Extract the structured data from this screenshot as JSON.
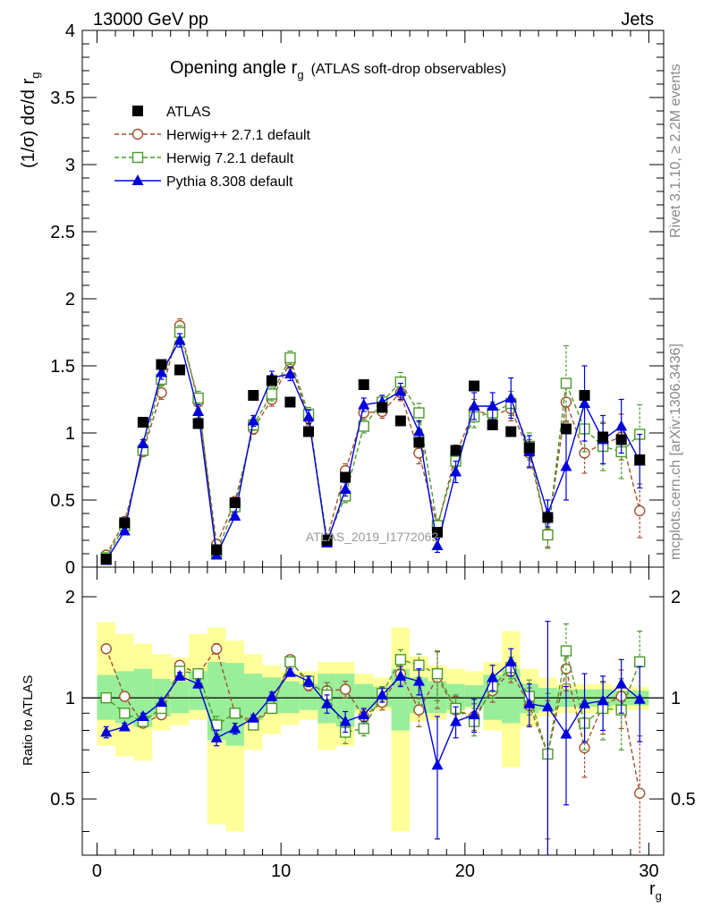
{
  "header": {
    "left": "13000 GeV pp",
    "right": "Jets"
  },
  "title": {
    "main": "Opening angle r",
    "sub": "g",
    "extra": "(ATLAS soft-drop observables)"
  },
  "side_labels": {
    "rivet": "Rivet 3.1.10, ≥ 2.2M events",
    "mcplots": "mcplots.cern.ch [arXiv:1306.3436]"
  },
  "watermark": "ATLAS_2019_I1772062",
  "axes": {
    "xlabel_main": "r",
    "xlabel_sub": "g",
    "ylabel_top": "(1/σ) dσ/d r",
    "ylabel_top_sub": "g",
    "ylabel_bottom": "Ratio to ATLAS",
    "top_yticks": [
      "0",
      "0.5",
      "1",
      "1.5",
      "2",
      "2.5",
      "3",
      "3.5",
      "4"
    ],
    "bottom_yticks": [
      "0.5",
      "1",
      "2"
    ],
    "xticks": [
      "0",
      "10",
      "20",
      "30"
    ]
  },
  "colors": {
    "atlas": "#000000",
    "herwig27": "#a0522d",
    "herwig72": "#4a9a2a",
    "pythia": "#0000dd",
    "band_yellow": "#ffff99",
    "band_green": "#99ee99"
  },
  "chart_data": [
    {
      "type": "scatter",
      "panel": "main",
      "title": "Opening angle r_g (ATLAS soft-drop observables)",
      "xlabel": "r_g",
      "ylabel": "(1/σ) dσ/d r_g",
      "xlim": [
        -0.8,
        30.8
      ],
      "ylim": [
        0,
        4
      ],
      "legend_position": "top-left",
      "x": [
        0.5,
        1.5,
        2.5,
        3.5,
        4.5,
        5.5,
        6.5,
        7.5,
        8.5,
        9.5,
        10.5,
        11.5,
        12.5,
        13.5,
        14.5,
        15.5,
        16.5,
        17.5,
        18.5,
        19.5,
        20.5,
        21.5,
        22.5,
        23.5,
        24.5,
        25.5,
        26.5,
        27.5,
        28.5,
        29.5
      ],
      "series": [
        {
          "name": "ATLAS",
          "marker": "square",
          "values": [
            0.06,
            0.33,
            1.08,
            1.51,
            1.47,
            1.07,
            0.13,
            0.48,
            1.28,
            1.39,
            1.23,
            1.01,
            0.2,
            0.67,
            1.36,
            1.19,
            1.09,
            0.93,
            0.26,
            0.87,
            1.35,
            1.06,
            1.01,
            0.89,
            0.37,
            1.03,
            1.28,
            0.97,
            0.95,
            0.8
          ]
        },
        {
          "name": "Herwig++ 2.7.1 default",
          "marker": "open-circle",
          "values": [
            0.09,
            0.34,
            0.86,
            1.3,
            1.8,
            1.23,
            0.17,
            0.49,
            1.03,
            1.25,
            1.53,
            1.11,
            0.21,
            0.72,
            1.15,
            1.16,
            1.3,
            0.85,
            0.3,
            0.84,
            1.17,
            1.13,
            1.18,
            0.85,
            0.25,
            1.23,
            0.85,
            0.92,
            0.97,
            0.42
          ],
          "errors": [
            0.02,
            0.03,
            0.03,
            0.05,
            0.05,
            0.05,
            0.03,
            0.03,
            0.04,
            0.05,
            0.05,
            0.05,
            0.03,
            0.05,
            0.05,
            0.05,
            0.06,
            0.08,
            0.05,
            0.07,
            0.08,
            0.08,
            0.09,
            0.1,
            0.1,
            0.15,
            0.15,
            0.15,
            0.17,
            0.2
          ]
        },
        {
          "name": "Herwig 7.2.1 default",
          "marker": "open-square",
          "values": [
            0.07,
            0.31,
            0.87,
            1.4,
            1.75,
            1.26,
            0.11,
            0.45,
            1.06,
            1.29,
            1.56,
            1.14,
            0.2,
            0.53,
            1.05,
            1.23,
            1.38,
            1.15,
            0.31,
            0.79,
            1.12,
            1.15,
            1.22,
            0.9,
            0.24,
            1.37,
            1.03,
            0.9,
            0.86,
            0.99
          ],
          "errors": [
            0.02,
            0.03,
            0.03,
            0.05,
            0.05,
            0.05,
            0.02,
            0.03,
            0.04,
            0.05,
            0.05,
            0.05,
            0.03,
            0.05,
            0.05,
            0.05,
            0.07,
            0.07,
            0.05,
            0.07,
            0.08,
            0.08,
            0.09,
            0.1,
            0.1,
            0.28,
            0.17,
            0.18,
            0.2,
            0.22
          ]
        },
        {
          "name": "Pythia 8.308 default",
          "marker": "filled-triangle",
          "values": [
            0.05,
            0.27,
            0.92,
            1.45,
            1.69,
            1.16,
            0.09,
            0.38,
            1.09,
            1.41,
            1.44,
            1.12,
            0.18,
            0.58,
            1.21,
            1.23,
            1.31,
            1.01,
            0.16,
            0.71,
            1.2,
            1.2,
            1.26,
            0.86,
            0.4,
            0.75,
            1.22,
            0.95,
            1.05,
            0.79
          ],
          "errors": [
            0.02,
            0.02,
            0.03,
            0.05,
            0.05,
            0.05,
            0.02,
            0.03,
            0.04,
            0.05,
            0.05,
            0.05,
            0.02,
            0.05,
            0.05,
            0.05,
            0.06,
            0.08,
            0.05,
            0.08,
            0.1,
            0.1,
            0.15,
            0.12,
            0.1,
            0.25,
            0.28,
            0.18,
            0.2,
            0.2
          ]
        }
      ]
    },
    {
      "type": "scatter",
      "panel": "ratio",
      "ylabel": "Ratio to ATLAS",
      "xlabel": "r_g",
      "xlim": [
        -0.8,
        30.8
      ],
      "ylim": [
        0.34,
        2.45
      ],
      "y_scale": "log",
      "x": [
        0.5,
        1.5,
        2.5,
        3.5,
        4.5,
        5.5,
        6.5,
        7.5,
        8.5,
        9.5,
        10.5,
        11.5,
        12.5,
        13.5,
        14.5,
        15.5,
        16.5,
        17.5,
        18.5,
        19.5,
        20.5,
        21.5,
        22.5,
        23.5,
        24.5,
        25.5,
        26.5,
        27.5,
        28.5,
        29.5
      ],
      "bands": {
        "yellow": {
          "lo": [
            0.72,
            0.67,
            0.65,
            0.8,
            0.83,
            0.86,
            0.42,
            0.4,
            0.7,
            0.78,
            0.83,
            0.86,
            0.7,
            0.72,
            0.9,
            0.92,
            0.4,
            0.85,
            0.86,
            0.9,
            0.93,
            0.8,
            0.62,
            0.82,
            0.88,
            0.9,
            0.9,
            0.9,
            0.92,
            0.92
          ],
          "hi": [
            1.68,
            1.55,
            1.45,
            1.35,
            1.32,
            1.55,
            1.62,
            1.48,
            1.35,
            1.25,
            1.2,
            1.2,
            1.28,
            1.28,
            1.18,
            1.15,
            1.62,
            1.33,
            1.25,
            1.22,
            1.2,
            1.28,
            1.58,
            1.22,
            1.15,
            1.1,
            1.1,
            1.1,
            1.08,
            1.08
          ]
        },
        "green": {
          "lo": [
            0.86,
            0.84,
            0.82,
            0.88,
            0.9,
            0.92,
            0.75,
            0.72,
            0.86,
            0.9,
            0.9,
            0.92,
            0.84,
            0.82,
            0.92,
            0.94,
            0.8,
            0.9,
            0.9,
            0.92,
            0.94,
            0.86,
            0.84,
            0.9,
            0.92,
            0.94,
            0.94,
            0.94,
            0.95,
            0.95
          ],
          "hi": [
            1.17,
            1.2,
            1.22,
            1.14,
            1.12,
            1.2,
            1.28,
            1.27,
            1.18,
            1.15,
            1.12,
            1.1,
            1.18,
            1.18,
            1.1,
            1.08,
            1.22,
            1.15,
            1.12,
            1.1,
            1.09,
            1.17,
            1.22,
            1.1,
            1.07,
            1.06,
            1.06,
            1.06,
            1.05,
            1.05
          ]
        }
      },
      "series": [
        {
          "name": "Herwig++ 2.7.1 default",
          "values": [
            1.4,
            1.01,
            0.84,
            0.89,
            1.25,
            1.18,
            1.4,
            0.9,
            0.85,
            0.93,
            1.3,
            1.09,
            1.05,
            1.06,
            0.88,
            0.97,
            1.18,
            0.92,
            1.15,
            0.92,
            0.88,
            1.05,
            1.2,
            0.95,
            0.68,
            1.22,
            0.71,
            0.95,
            1.01,
            0.52
          ],
          "errors": [
            0.03,
            0.02,
            0.02,
            0.02,
            0.03,
            0.03,
            0.05,
            0.03,
            0.02,
            0.03,
            0.03,
            0.04,
            0.06,
            0.06,
            0.04,
            0.05,
            0.09,
            0.1,
            0.22,
            0.09,
            0.08,
            0.08,
            0.09,
            0.12,
            0.3,
            0.17,
            0.13,
            0.17,
            0.2,
            0.25
          ]
        },
        {
          "name": "Herwig 7.2.1 default",
          "values": [
            1.0,
            0.9,
            0.85,
            0.93,
            1.2,
            1.18,
            0.83,
            0.9,
            0.83,
            0.93,
            1.28,
            1.12,
            1.02,
            0.79,
            0.81,
            1.03,
            1.3,
            1.25,
            1.18,
            0.93,
            0.85,
            1.08,
            1.23,
            1.01,
            0.68,
            1.38,
            0.84,
            0.93,
            0.92,
            1.28
          ],
          "errors": [
            0.03,
            0.02,
            0.02,
            0.02,
            0.03,
            0.03,
            0.05,
            0.03,
            0.02,
            0.03,
            0.03,
            0.04,
            0.06,
            0.06,
            0.04,
            0.05,
            0.09,
            0.1,
            0.2,
            0.09,
            0.08,
            0.08,
            0.09,
            0.12,
            0.35,
            0.28,
            0.14,
            0.18,
            0.22,
            0.3
          ]
        },
        {
          "name": "Pythia 8.308 default",
          "values": [
            0.79,
            0.82,
            0.88,
            0.97,
            1.16,
            1.1,
            0.76,
            0.81,
            0.87,
            1.01,
            1.19,
            1.12,
            0.96,
            0.85,
            0.89,
            1.02,
            1.16,
            1.12,
            0.63,
            0.85,
            0.89,
            1.15,
            1.28,
            0.96,
            0.94,
            0.78,
            0.96,
            0.98,
            1.1,
            0.99
          ],
          "errors": [
            0.03,
            0.02,
            0.02,
            0.02,
            0.03,
            0.03,
            0.04,
            0.03,
            0.02,
            0.03,
            0.03,
            0.04,
            0.06,
            0.06,
            0.04,
            0.05,
            0.08,
            0.1,
            0.25,
            0.09,
            0.1,
            0.1,
            0.12,
            0.14,
            0.75,
            0.3,
            0.22,
            0.18,
            0.2,
            0.25
          ]
        }
      ]
    }
  ]
}
